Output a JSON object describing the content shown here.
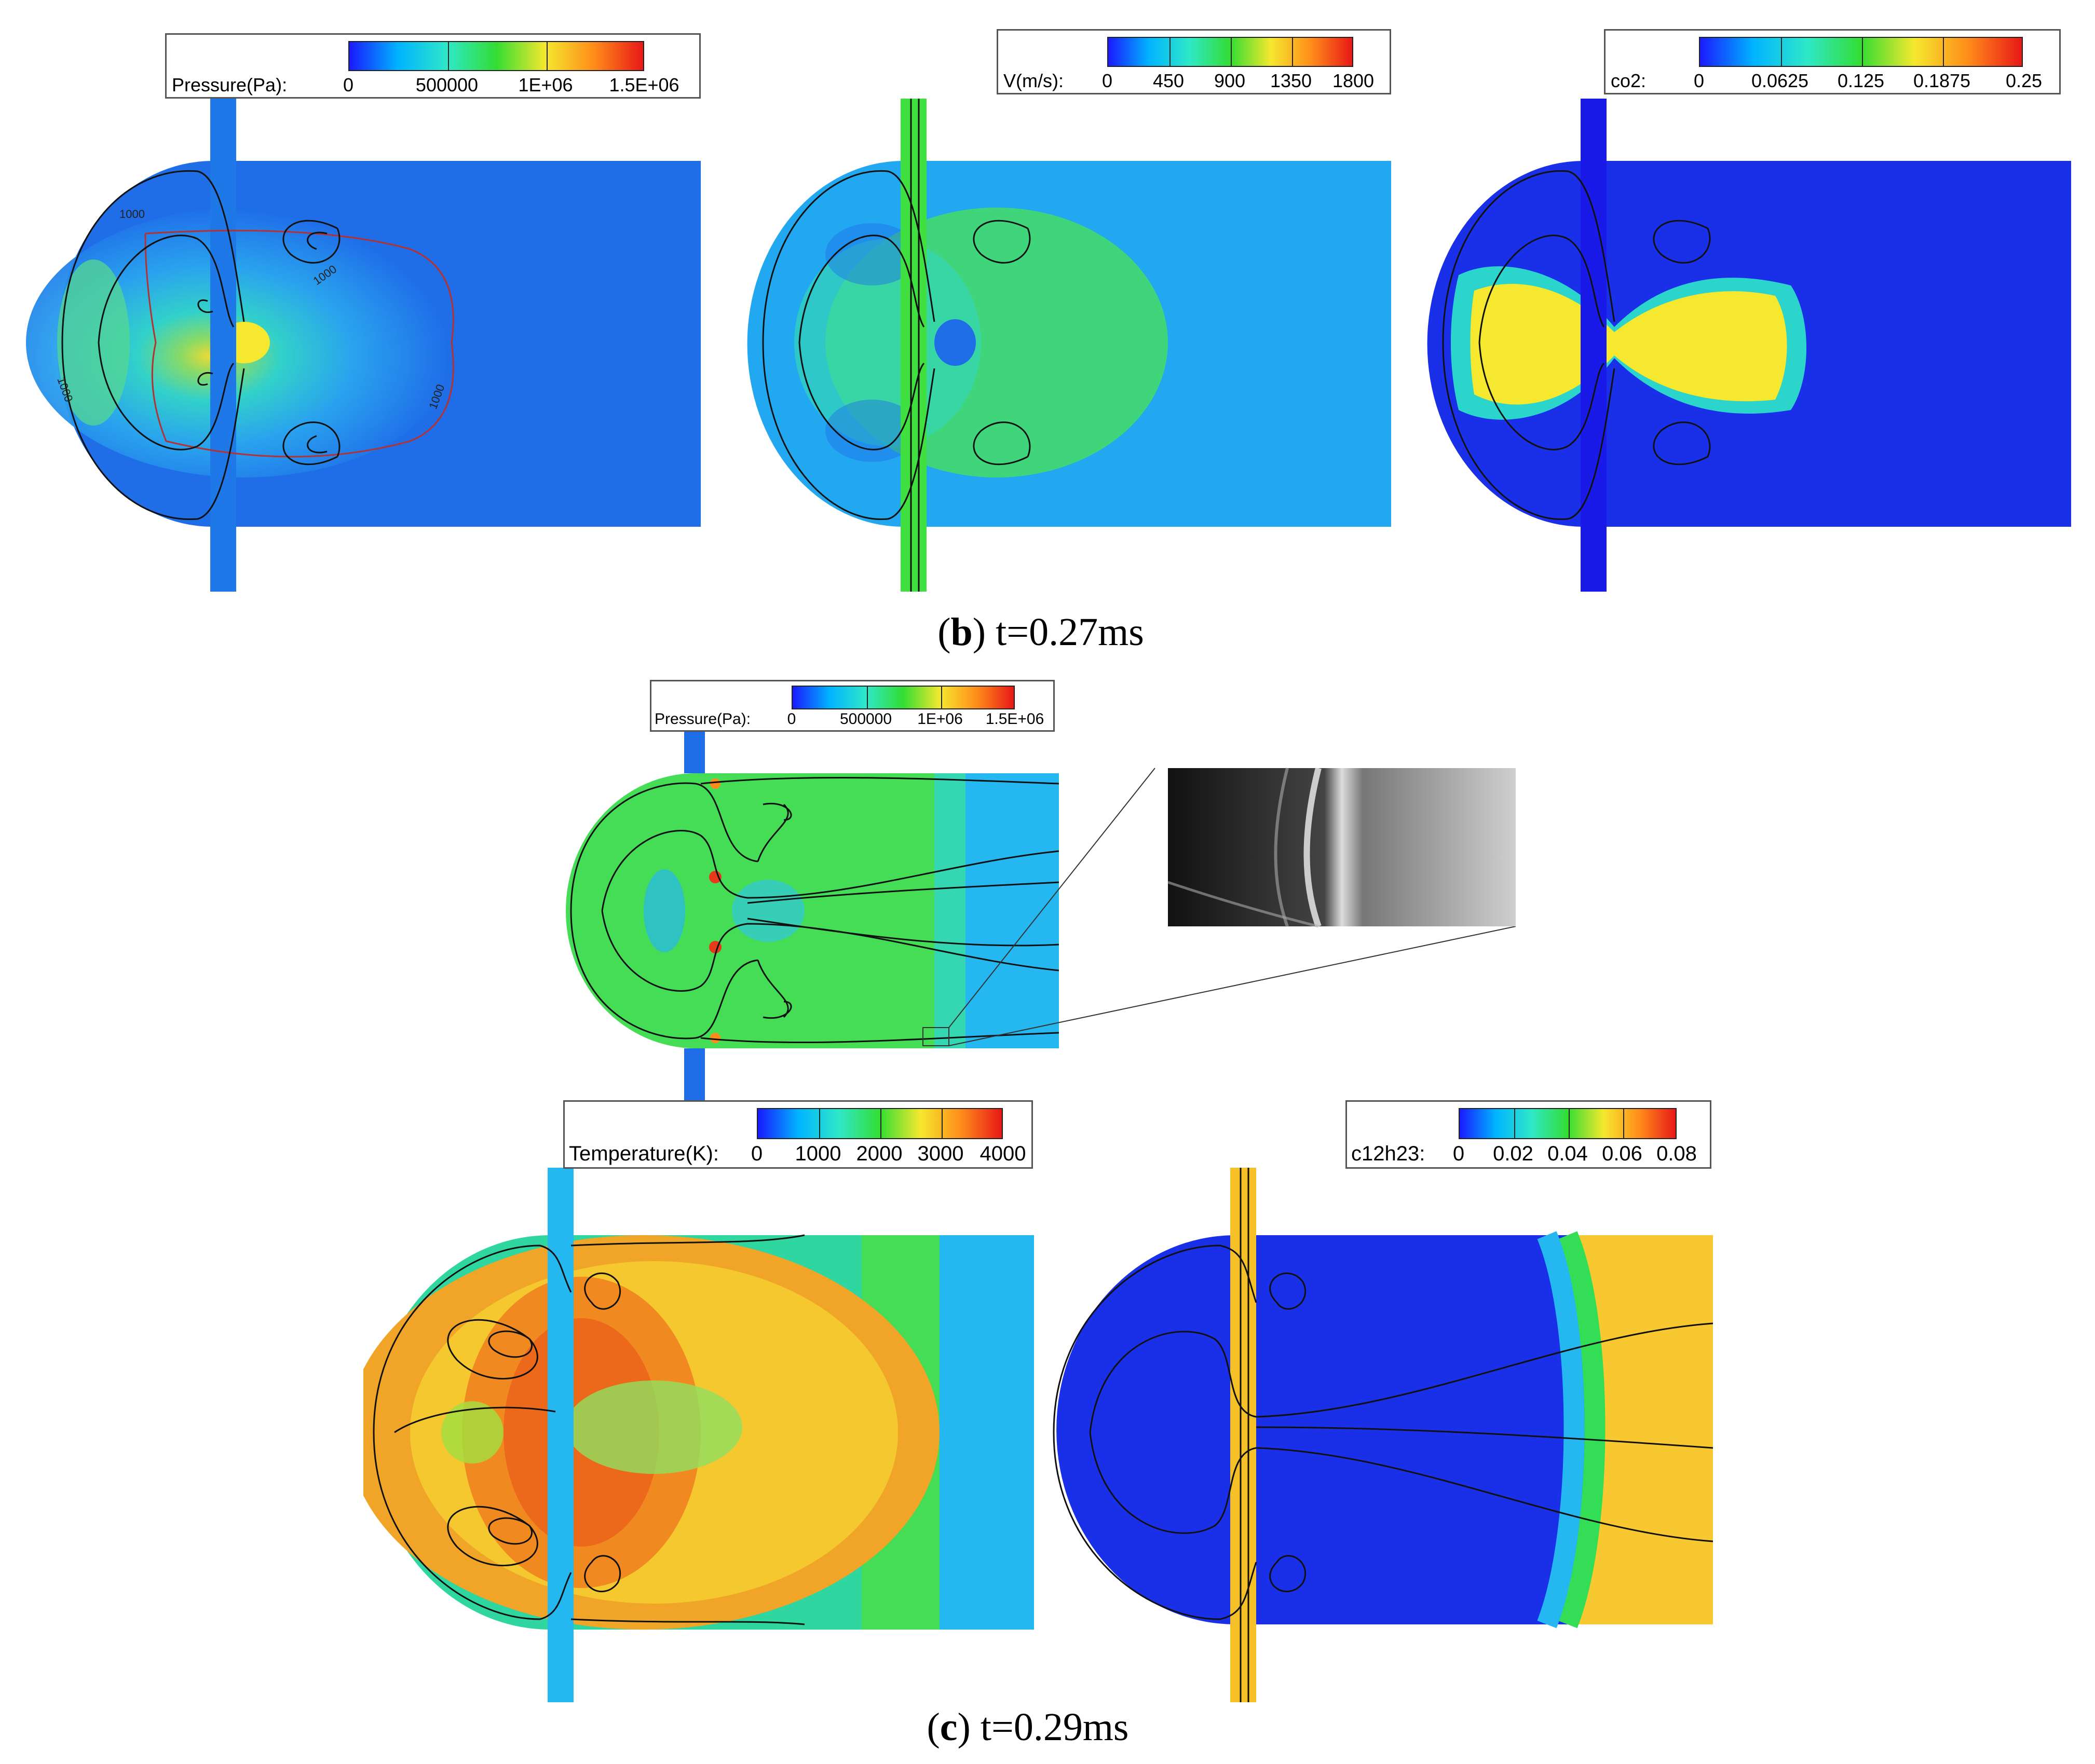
{
  "panel_b": {
    "caption_letter": "b",
    "caption_rest": " t=0.27ms",
    "fields": [
      {
        "title": "Pressure(Pa):",
        "ticks": [
          "0",
          "500000",
          "1E+06",
          "1.5E+06"
        ]
      },
      {
        "title": "V(m/s):",
        "ticks": [
          "0",
          "450",
          "900",
          "1350",
          "1800"
        ]
      },
      {
        "title": "co2:",
        "ticks": [
          "0",
          "0.0625",
          "0.125",
          "0.1875",
          "0.25"
        ]
      }
    ],
    "contour_label": "1000"
  },
  "panel_c": {
    "caption_letter": "c",
    "caption_rest": " t=0.29ms",
    "fields": [
      {
        "title": "Pressure(Pa):",
        "ticks": [
          "0",
          "500000",
          "1E+06",
          "1.5E+06"
        ]
      },
      {
        "title": "Temperature(K):",
        "ticks": [
          "0",
          "1000",
          "2000",
          "3000",
          "4000"
        ]
      },
      {
        "title": "c12h23:",
        "ticks": [
          "0",
          "0.02",
          "0.04",
          "0.06",
          "0.08"
        ]
      }
    ]
  },
  "colors": {
    "colormap": [
      "#1a1aff",
      "#00b4ff",
      "#2fe8c8",
      "#33dd33",
      "#f5e82e",
      "#ff8c1a",
      "#e81818"
    ],
    "low_blue": "#1a2fe8",
    "mid_blue": "#1f6ee8",
    "cyan": "#25c8f0",
    "green": "#40e040",
    "yellow": "#f7d230",
    "orange": "#f08a20",
    "red": "#e02a1a"
  }
}
